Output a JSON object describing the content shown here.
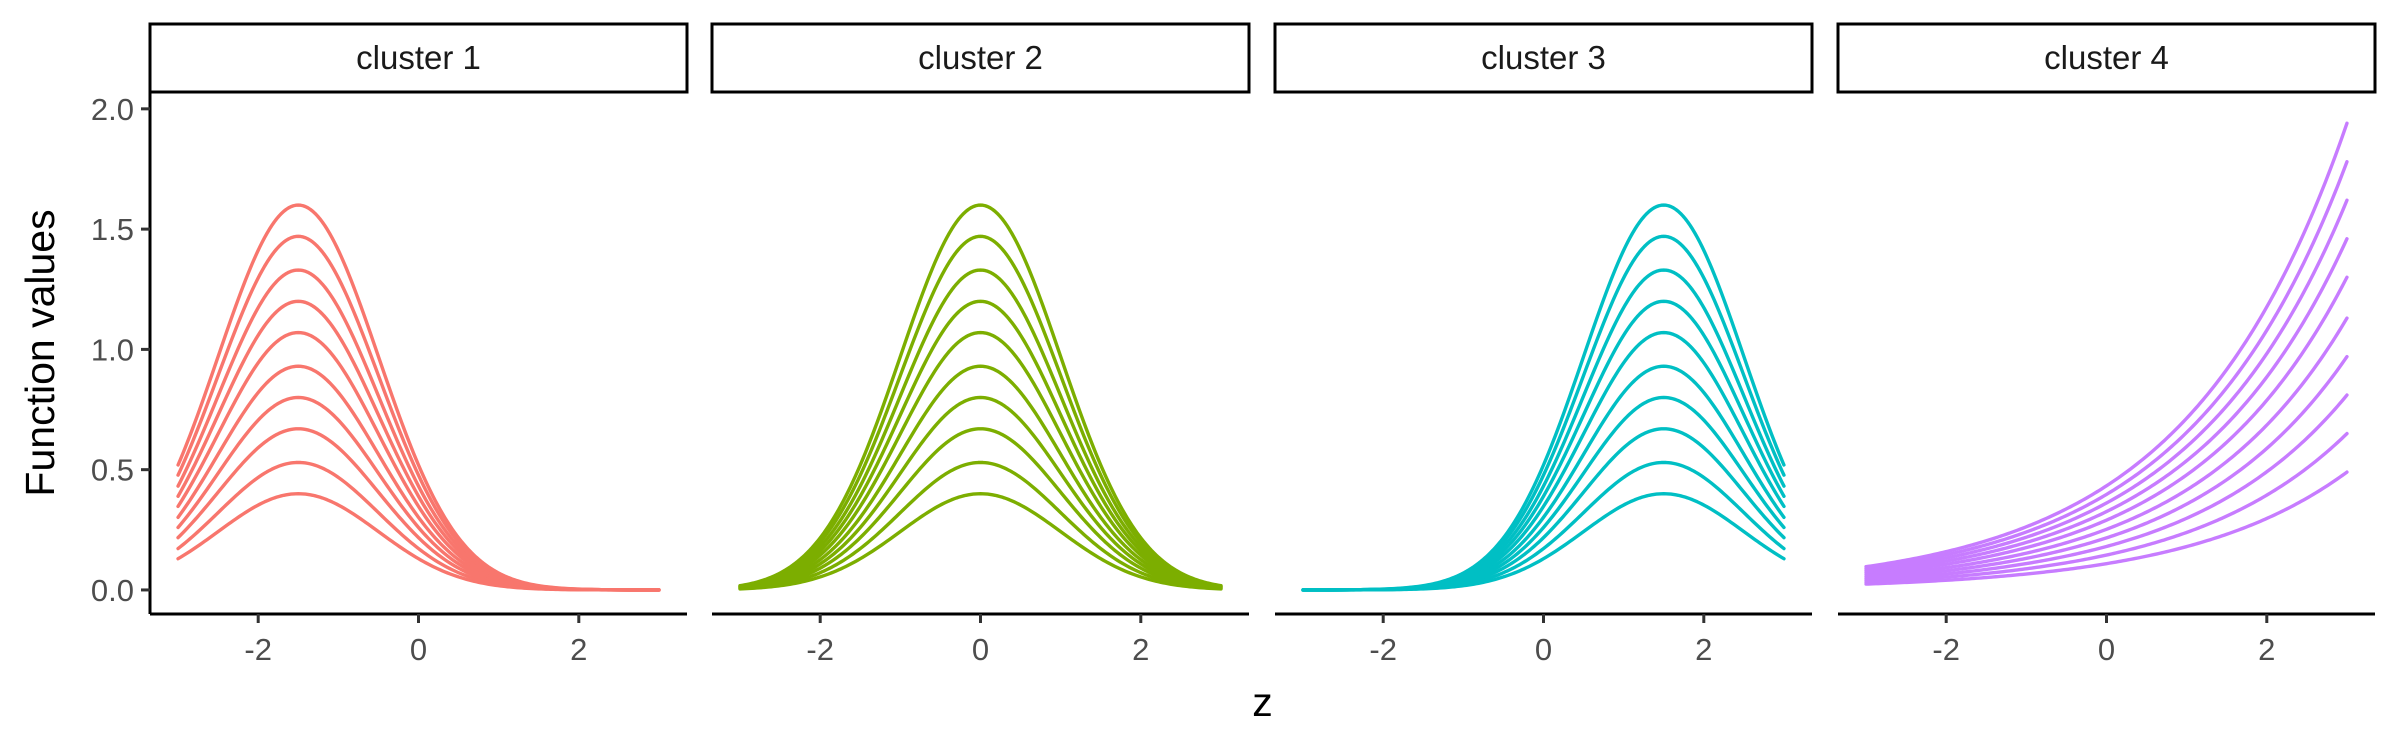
{
  "chart_data": {
    "type": "line",
    "ylabel": "Function values",
    "xlabel": "z",
    "ylim": [
      -0.1,
      2.07
    ],
    "y_ticks": [
      0.0,
      0.5,
      1.0,
      1.5,
      2.0
    ],
    "y_tick_labels": [
      "0.0",
      "0.5",
      "1.0",
      "1.5",
      "2.0"
    ],
    "x_ticks": [
      -2,
      0,
      2
    ],
    "x_tick_labels": [
      "-2",
      "0",
      "2"
    ],
    "xlim": [
      -3.35,
      3.35
    ],
    "x_domain": [
      -3,
      3
    ],
    "curves_per_panel": 10,
    "panels": [
      {
        "strip_label": "cluster 1",
        "color": "#F8766D",
        "kind": "gaussian",
        "center": -1.5,
        "sd": 1.0,
        "peak_values": [
          0.4,
          0.53,
          0.67,
          0.8,
          0.93,
          1.07,
          1.2,
          1.33,
          1.47,
          1.6
        ]
      },
      {
        "strip_label": "cluster 2",
        "color": "#7CAE00",
        "kind": "gaussian",
        "center": 0.0,
        "sd": 1.0,
        "peak_values": [
          0.4,
          0.53,
          0.67,
          0.8,
          0.93,
          1.07,
          1.2,
          1.33,
          1.47,
          1.6
        ]
      },
      {
        "strip_label": "cluster 3",
        "color": "#00BFC4",
        "kind": "gaussian",
        "center": 1.5,
        "sd": 1.0,
        "peak_values": [
          0.4,
          0.53,
          0.67,
          0.8,
          0.93,
          1.07,
          1.2,
          1.33,
          1.47,
          1.6
        ]
      },
      {
        "strip_label": "cluster 4",
        "color": "#C77CFF",
        "kind": "exponential",
        "rate": 0.5,
        "end_values_at_z3": [
          0.49,
          0.65,
          0.81,
          0.97,
          1.13,
          1.3,
          1.46,
          1.62,
          1.78,
          1.94
        ]
      }
    ]
  }
}
